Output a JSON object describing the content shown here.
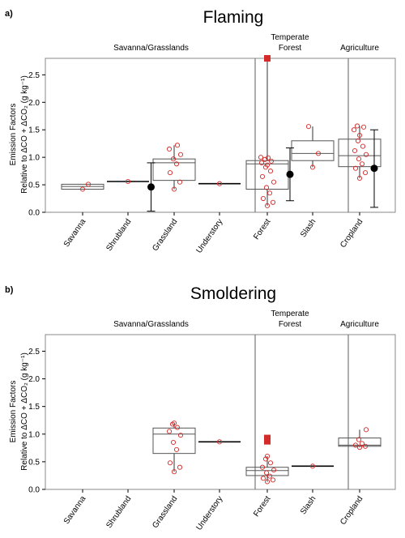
{
  "chart_data": [
    {
      "type": "box",
      "panel_label": "a)",
      "title": "Flaming",
      "ylabel_line1": "Emission Factors",
      "ylabel_line2": "Relative to ΔCO + ΔCO₂ (g kg⁻¹)",
      "ylim": [
        0,
        2.8
      ],
      "yticks": [
        "0.0",
        "0.5",
        "1.0",
        "1.5",
        "2.0",
        "2.5"
      ],
      "categories": [
        "Savanna",
        "Shrubland",
        "Grassland",
        "Understory",
        "Forest",
        "Slash",
        "Cropland"
      ],
      "groups": [
        {
          "label": "Savanna/Grasslands",
          "categories": [
            "Savanna",
            "Shrubland",
            "Grassland",
            "Understory"
          ]
        },
        {
          "label": "Temperate Forest",
          "categories": [
            "Forest",
            "Slash"
          ]
        },
        {
          "label": "Agriculture",
          "categories": [
            "Cropland"
          ]
        }
      ],
      "boxes": [
        {
          "category": "Savanna",
          "q1": 0.42,
          "median": 0.47,
          "q3": 0.51,
          "whisker_low": null,
          "whisker_high": null,
          "points": [
            0.42,
            0.51
          ],
          "outliers": []
        },
        {
          "category": "Shrubland",
          "q1": null,
          "median": 0.56,
          "q3": null,
          "whisker_low": null,
          "whisker_high": null,
          "points": [
            0.56
          ],
          "outliers": []
        },
        {
          "category": "Grassland",
          "q1": 0.58,
          "median": 0.9,
          "q3": 0.97,
          "whisker_low": 0.42,
          "whisker_high": 1.22,
          "points": [
            0.42,
            0.55,
            0.72,
            0.88,
            0.97,
            1.05,
            1.15,
            1.22
          ],
          "outliers": []
        },
        {
          "category": "Understory",
          "q1": null,
          "median": 0.52,
          "q3": null,
          "whisker_low": null,
          "whisker_high": null,
          "points": [
            0.52
          ],
          "outliers": []
        },
        {
          "category": "Forest",
          "q1": 0.42,
          "median": 0.88,
          "q3": 0.94,
          "whisker_low": 0.12,
          "whisker_high": 2.8,
          "points": [
            0.12,
            0.18,
            0.25,
            0.35,
            0.45,
            0.55,
            0.65,
            0.75,
            0.82,
            0.86,
            0.9,
            0.93,
            0.96,
            0.99,
            1.0
          ],
          "outliers": [
            2.8
          ]
        },
        {
          "category": "Slash",
          "q1": 0.94,
          "median": 1.07,
          "q3": 1.3,
          "whisker_low": 0.82,
          "whisker_high": 1.56,
          "points": [
            0.82,
            1.07,
            1.56
          ],
          "outliers": []
        },
        {
          "category": "Cropland",
          "q1": 0.83,
          "median": 1.03,
          "q3": 1.33,
          "whisker_low": 0.62,
          "whisker_high": 1.57,
          "points": [
            0.62,
            0.72,
            0.8,
            0.88,
            0.97,
            1.05,
            1.12,
            1.2,
            1.3,
            1.4,
            1.5,
            1.55,
            1.57
          ],
          "outliers": []
        }
      ],
      "mean_sd": [
        {
          "between": [
            "Shrubland",
            "Grassland"
          ],
          "mean": 0.46,
          "low": 0.02,
          "high": 0.9
        },
        {
          "between": [
            "Forest",
            "Slash"
          ],
          "mean": 0.69,
          "low": 0.21,
          "high": 1.17
        },
        {
          "between": [
            "Cropland",
            "Cropland"
          ],
          "mean": 0.8,
          "low": 0.09,
          "high": 1.5
        }
      ]
    },
    {
      "type": "box",
      "panel_label": "b)",
      "title": "Smoldering",
      "ylabel_line1": "Emission Factors",
      "ylabel_line2": "Relative to ΔCO + ΔCO₂ (g kg⁻¹)",
      "ylim": [
        0,
        2.8
      ],
      "yticks": [
        "0.0",
        "0.5",
        "1.0",
        "1.5",
        "2.0",
        "2.5"
      ],
      "categories": [
        "Savanna",
        "Shrubland",
        "Grassland",
        "Understory",
        "Forest",
        "Slash",
        "Cropland"
      ],
      "groups": [
        {
          "label": "Savanna/Grasslands",
          "categories": [
            "Savanna",
            "Shrubland",
            "Grassland",
            "Understory"
          ]
        },
        {
          "label": "Temperate Forest",
          "categories": [
            "Forest",
            "Slash"
          ]
        },
        {
          "label": "Agriculture",
          "categories": [
            "Cropland"
          ]
        }
      ],
      "boxes": [
        {
          "category": "Grassland",
          "q1": 0.65,
          "median": 1.0,
          "q3": 1.11,
          "whisker_low": 0.32,
          "whisker_high": 1.2,
          "points": [
            0.32,
            0.4,
            0.48,
            0.72,
            0.85,
            0.98,
            1.05,
            1.12,
            1.18,
            1.2
          ],
          "outliers": []
        },
        {
          "category": "Understory",
          "q1": null,
          "median": 0.86,
          "q3": null,
          "whisker_low": null,
          "whisker_high": null,
          "points": [
            0.86
          ],
          "outliers": []
        },
        {
          "category": "Forest",
          "q1": 0.25,
          "median": 0.34,
          "q3": 0.4,
          "whisker_low": 0.14,
          "whisker_high": 0.6,
          "points": [
            0.14,
            0.17,
            0.2,
            0.24,
            0.3,
            0.35,
            0.4,
            0.48,
            0.55,
            0.6
          ],
          "outliers": [
            0.87,
            0.93
          ]
        },
        {
          "category": "Slash",
          "q1": null,
          "median": 0.42,
          "q3": null,
          "whisker_low": null,
          "whisker_high": null,
          "points": [
            0.42
          ],
          "outliers": []
        },
        {
          "category": "Cropland",
          "q1": 0.78,
          "median": 0.8,
          "q3": 0.93,
          "whisker_low": 0.76,
          "whisker_high": 1.08,
          "points": [
            0.76,
            0.78,
            0.8,
            0.83,
            0.9,
            1.08
          ],
          "outliers": []
        }
      ],
      "mean_sd": []
    }
  ]
}
